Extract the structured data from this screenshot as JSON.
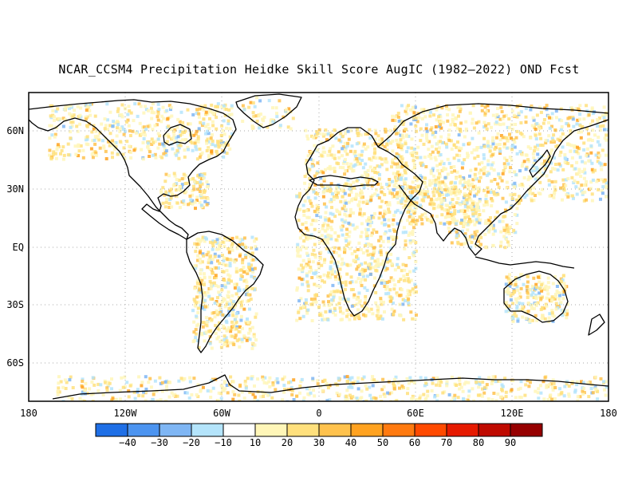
{
  "title": "NCAR_CCSM4 Precipitation Heidke Skill Score AugIC (1982–2022) OND Fcst",
  "lat_labels": [
    "60N",
    "30N",
    "EQ",
    "30S",
    "60S"
  ],
  "lon_labels": [
    "180",
    "120W",
    "60W",
    "0",
    "60E",
    "120E",
    "180"
  ],
  "colorbar": {
    "tick_labels": [
      "−40",
      "−30",
      "−20",
      "−10",
      "10",
      "20",
      "30",
      "40",
      "50",
      "60",
      "70",
      "80",
      "90"
    ],
    "colors": [
      "#1f6fe6",
      "#4c94f0",
      "#7fb6f4",
      "#b4e4fb",
      "#ffffff",
      "#fff6b8",
      "#ffe07d",
      "#ffc24d",
      "#ffa220",
      "#ff7a10",
      "#ff4a00",
      "#e61a00",
      "#bf0a00",
      "#960000"
    ]
  },
  "colors": {
    "land_outline": "#000000",
    "gridline": "#aaaaaa"
  }
}
